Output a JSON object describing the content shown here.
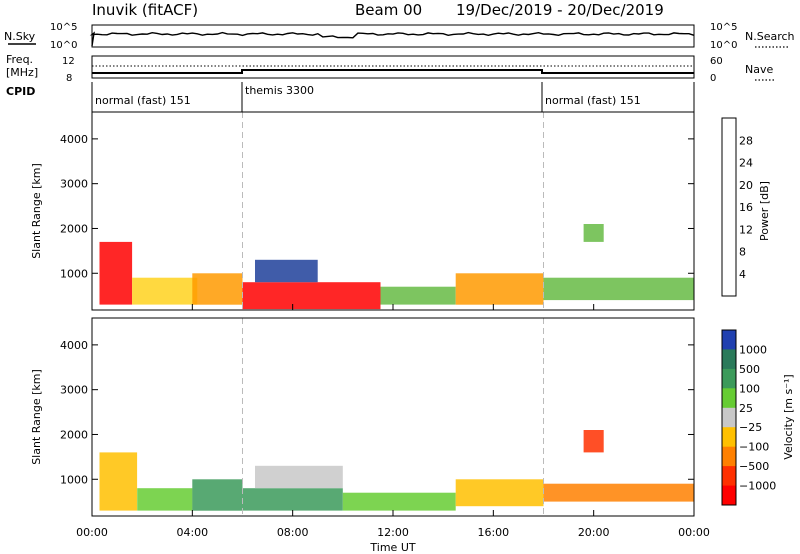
{
  "header": {
    "station": "Inuvik (fitACF)",
    "beam_label": "Beam 00",
    "date_range": "19/Dec/2019 - 20/Dec/2019"
  },
  "panels": {
    "nsky": {
      "label": "N.Sky",
      "ticks": [
        "10^5",
        "10^0"
      ],
      "right_label": "N.Search",
      "right_ticks": [
        "10^5",
        "10^0"
      ]
    },
    "freq": {
      "label_1": "Freq.",
      "label_2": "[MHz]",
      "ticks": [
        "12",
        "8"
      ],
      "right_label": "Nave",
      "right_ticks": [
        "60",
        "0"
      ]
    },
    "cpid": {
      "label": "CPID",
      "modes": [
        {
          "name": "normal (fast) 151",
          "start_hour": 0,
          "end_hour": 6
        },
        {
          "name": "themis 3300",
          "start_hour": 6,
          "end_hour": 18
        },
        {
          "name": "normal (fast) 151",
          "start_hour": 18,
          "end_hour": 24
        }
      ]
    }
  },
  "time_axis": {
    "label": "Time UT",
    "tick_labels": [
      "00:00",
      "04:00",
      "08:00",
      "12:00",
      "16:00",
      "20:00",
      "00:00"
    ],
    "tick_hours": [
      0,
      4,
      8,
      12,
      16,
      20,
      24
    ]
  },
  "power_colorbar": {
    "label": "Power [dB]",
    "ticks": [
      "28",
      "24",
      "20",
      "16",
      "12",
      "8",
      "4"
    ],
    "colors": [
      "#0000ff",
      "#1e3f9a",
      "#2e7a4a",
      "#66bb44",
      "#ffd21e",
      "#ff9a00",
      "#ff5a00",
      "#ff0000"
    ]
  },
  "velocity_colorbar": {
    "label": "Velocity [m s⁻¹]",
    "ticks": [
      "1000",
      "500",
      "100",
      "25",
      "−25",
      "−100",
      "−500",
      "−1000"
    ],
    "colors": [
      "#2040b0",
      "#2a7a5a",
      "#3b9a5a",
      "#66cc33",
      "#c8c8c8",
      "#ffc000",
      "#ff8000",
      "#ff3000",
      "#ff0000"
    ]
  },
  "chart_data": [
    {
      "type": "heatmap",
      "title": "Power",
      "xlabel": "",
      "ylabel": "Slant Range [km]",
      "xlim": [
        0,
        24
      ],
      "ylim": [
        180,
        4600
      ],
      "y_tick_values": [
        1000,
        2000,
        3000,
        4000
      ],
      "regions": [
        {
          "x": [
            0.3,
            1.6
          ],
          "y": [
            300,
            1700
          ],
          "value": 28
        },
        {
          "x": [
            1.6,
            4.2
          ],
          "y": [
            300,
            900
          ],
          "value": 16
        },
        {
          "x": [
            4.0,
            6.0
          ],
          "y": [
            300,
            1000
          ],
          "value": 20
        },
        {
          "x": [
            6.0,
            11.5
          ],
          "y": [
            200,
            800
          ],
          "value": 28
        },
        {
          "x": [
            6.5,
            9.0
          ],
          "y": [
            800,
            1300
          ],
          "value": 6
        },
        {
          "x": [
            11.5,
            14.5
          ],
          "y": [
            300,
            700
          ],
          "value": 12
        },
        {
          "x": [
            14.5,
            18.0
          ],
          "y": [
            300,
            1000
          ],
          "value": 20
        },
        {
          "x": [
            18.0,
            24.0
          ],
          "y": [
            400,
            900
          ],
          "value": 12
        },
        {
          "x": [
            19.6,
            20.4
          ],
          "y": [
            1700,
            2100
          ],
          "value": 12
        }
      ]
    },
    {
      "type": "heatmap",
      "title": "Velocity",
      "xlabel": "Time UT",
      "ylabel": "Slant Range [km]",
      "xlim": [
        0,
        24
      ],
      "ylim": [
        180,
        4600
      ],
      "y_tick_values": [
        1000,
        2000,
        3000,
        4000
      ],
      "regions": [
        {
          "x": [
            0.3,
            1.8
          ],
          "y": [
            300,
            1600
          ],
          "value": -100
        },
        {
          "x": [
            1.8,
            4.0
          ],
          "y": [
            300,
            800
          ],
          "value": 50
        },
        {
          "x": [
            4.0,
            6.0
          ],
          "y": [
            300,
            1000
          ],
          "value": 200
        },
        {
          "x": [
            6.0,
            10.0
          ],
          "y": [
            300,
            800
          ],
          "value": 100
        },
        {
          "x": [
            6.5,
            10.0
          ],
          "y": [
            800,
            1300
          ],
          "value": 0
        },
        {
          "x": [
            10.0,
            14.5
          ],
          "y": [
            300,
            700
          ],
          "value": 50
        },
        {
          "x": [
            14.5,
            18.0
          ],
          "y": [
            400,
            1000
          ],
          "value": -100
        },
        {
          "x": [
            18.0,
            24.0
          ],
          "y": [
            500,
            900
          ],
          "value": -300
        },
        {
          "x": [
            19.6,
            20.4
          ],
          "y": [
            1600,
            2100
          ],
          "value": -600
        }
      ]
    }
  ]
}
